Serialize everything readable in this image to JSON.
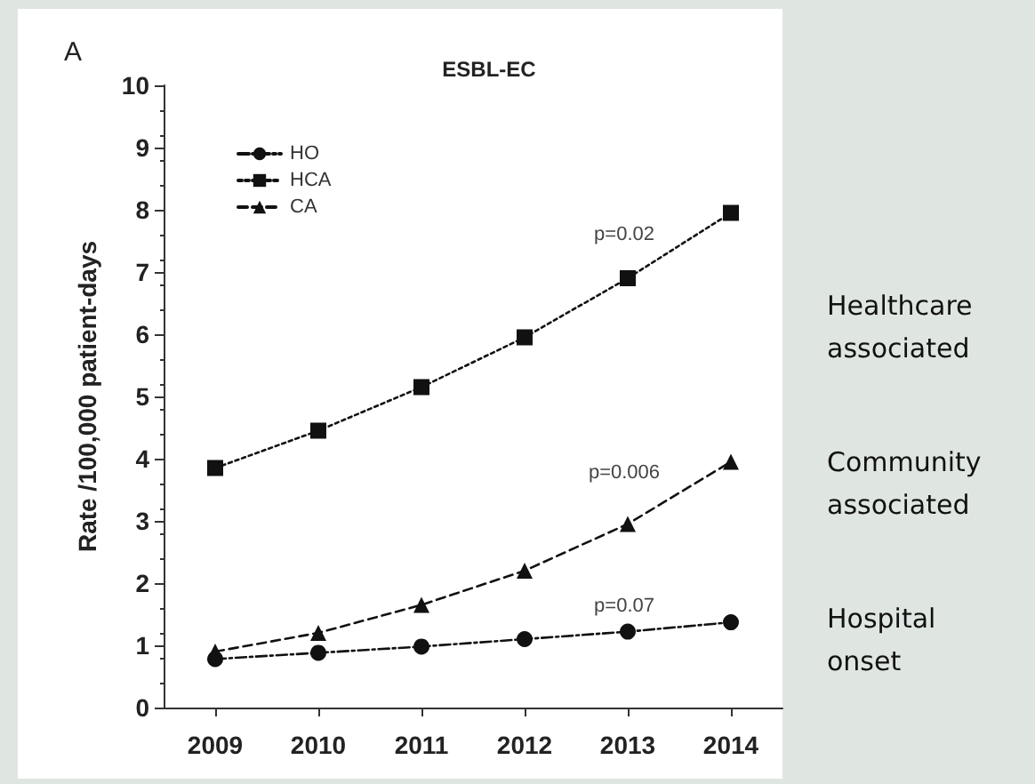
{
  "chart_data": {
    "type": "line",
    "title": "ESBL-EC",
    "ylabel": "Rate /100,000 patient-days",
    "categories": [
      "2009",
      "2010",
      "2011",
      "2012",
      "2013",
      "2014"
    ],
    "series": [
      {
        "name": "HO",
        "color": "#111111",
        "marker": "circle",
        "line_style": "dashdot",
        "values": [
          0.78,
          0.88,
          0.98,
          1.1,
          1.22,
          1.37
        ]
      },
      {
        "name": "HCA",
        "color": "#111111",
        "marker": "square",
        "line_style": "dotted",
        "values": [
          3.85,
          4.45,
          5.15,
          5.95,
          6.9,
          7.95
        ]
      },
      {
        "name": "CA",
        "color": "#111111",
        "marker": "triangle",
        "line_style": "dashed",
        "values": [
          0.9,
          1.2,
          1.65,
          2.2,
          2.95,
          3.95
        ]
      }
    ],
    "ylim": [
      0,
      10
    ],
    "yticks": [
      0,
      1,
      2,
      3,
      4,
      5,
      6,
      7,
      8,
      9,
      10
    ],
    "grid": false,
    "legend": "top left",
    "annotations": [
      "A",
      "Healthcare associated",
      "Community associated",
      "Hospital onset",
      "p=0.02",
      "p=0.006",
      "p=0.07"
    ]
  }
}
